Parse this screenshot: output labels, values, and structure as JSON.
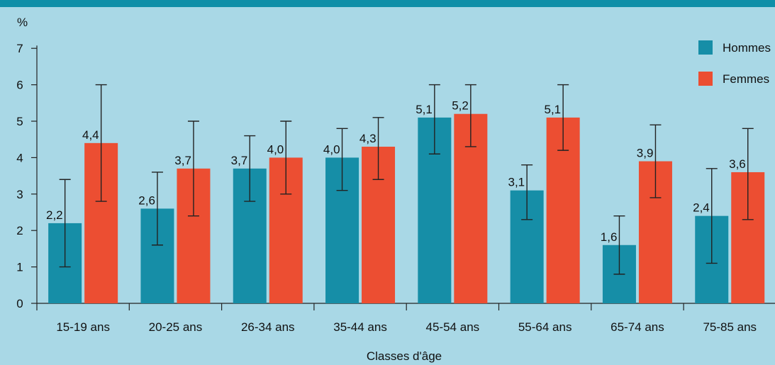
{
  "chart_data": {
    "type": "bar",
    "ylabel": "%",
    "xlabel": "Classes d'âge",
    "ylim": [
      0,
      7
    ],
    "yticks": [
      "0",
      "1",
      "2",
      "3",
      "4",
      "5",
      "6",
      "7"
    ],
    "categories": [
      "15-19 ans",
      "20-25 ans",
      "26-34 ans",
      "35-44 ans",
      "45-54 ans",
      "55-64 ans",
      "65-74 ans",
      "75-85 ans"
    ],
    "series": [
      {
        "name": "Hommes",
        "color": "#168ea7",
        "values": [
          2.2,
          2.6,
          3.7,
          4.0,
          5.1,
          3.1,
          1.6,
          2.4
        ],
        "labels": [
          "2,2",
          "2,6",
          "3,7",
          "4,0",
          "5,1",
          "3,1",
          "1,6",
          "2,4"
        ],
        "error_low": [
          1.0,
          1.6,
          2.8,
          3.1,
          4.1,
          2.3,
          0.8,
          1.1
        ],
        "error_high": [
          3.4,
          3.6,
          4.6,
          4.8,
          6.0,
          3.8,
          2.4,
          3.7
        ]
      },
      {
        "name": "Femmes",
        "color": "#ec4e32",
        "values": [
          4.4,
          3.7,
          4.0,
          4.3,
          5.2,
          5.1,
          3.9,
          3.6
        ],
        "labels": [
          "4,4",
          "3,7",
          "4,0",
          "4,3",
          "5,2",
          "5,1",
          "3,9",
          "3,6"
        ],
        "error_low": [
          2.8,
          2.4,
          3.0,
          3.4,
          4.3,
          4.2,
          2.9,
          2.3
        ],
        "error_high": [
          6.0,
          5.0,
          5.0,
          5.1,
          6.0,
          6.0,
          4.9,
          4.8
        ]
      }
    ],
    "legend_position": "top-right",
    "grid": false
  }
}
